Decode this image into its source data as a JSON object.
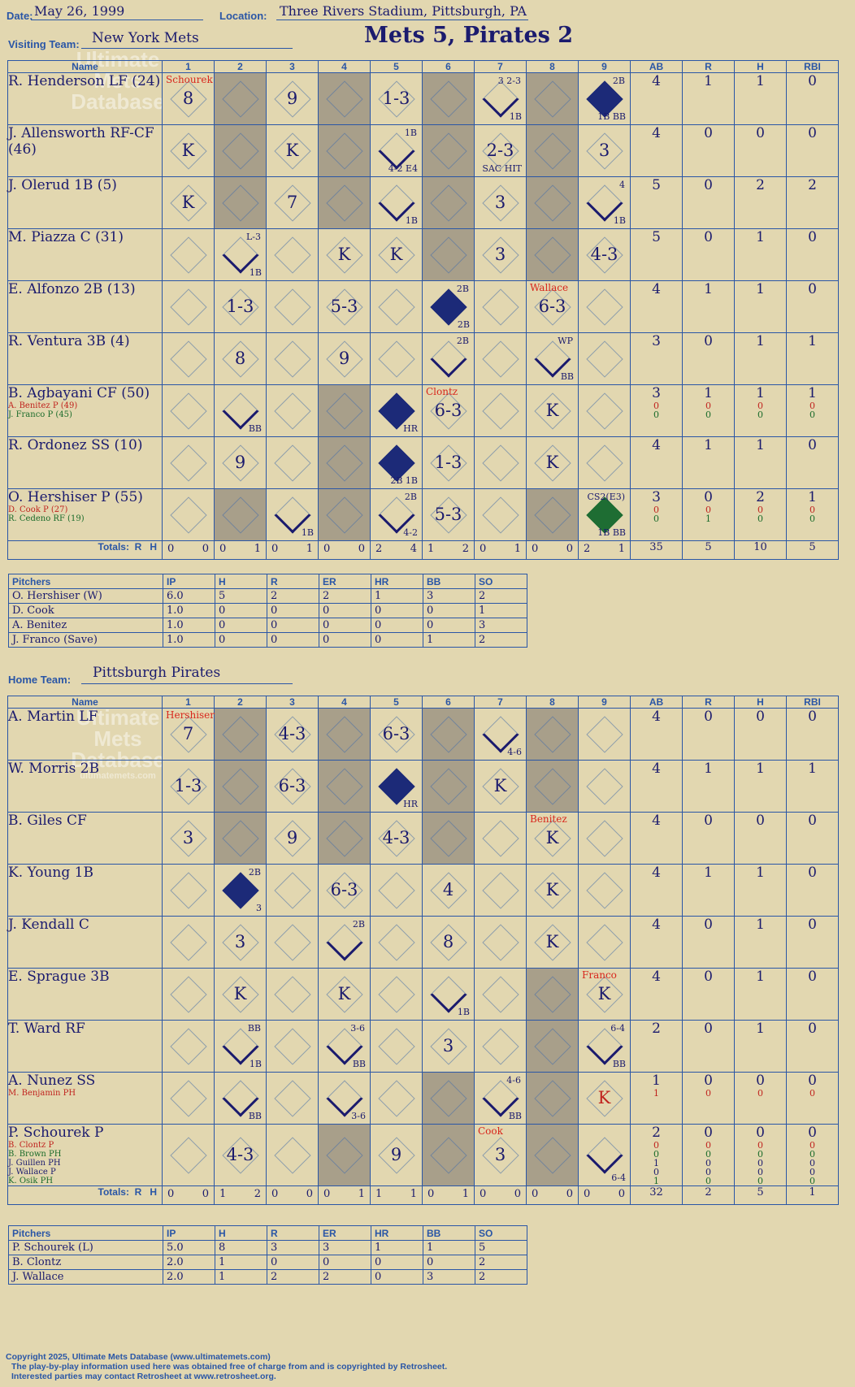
{
  "header": {
    "date_label": "Date:",
    "date": "May 26, 1999",
    "location_label": "Location:",
    "location": "Three Rivers Stadium, Pittsburgh, PA",
    "visiting_label": "Visiting Team:",
    "visiting_team": "New York Mets",
    "home_label": "Home Team:",
    "home_team": "Pittsburgh Pirates",
    "title": "Mets 5, Pirates 2"
  },
  "columns": {
    "name": "Name",
    "innings": [
      "1",
      "2",
      "3",
      "4",
      "5",
      "6",
      "7",
      "8",
      "9"
    ],
    "stats": [
      "AB",
      "R",
      "H",
      "RBI"
    ],
    "totals": "Totals:",
    "r": "R",
    "h": "H"
  },
  "watermark": {
    "line1": "Ultimate",
    "line2": "Mets",
    "line3": "Database",
    "url": "ultimatemets.com"
  },
  "visitors": {
    "shaded_innings": [
      2,
      4,
      6,
      8
    ],
    "players": [
      {
        "name": "R. Henderson LF (24)",
        "subs": [],
        "stats": {
          "ab": "4",
          "r": "1",
          "h": "1",
          "rbi": "0"
        },
        "cells": [
          {
            "inn": 1,
            "result": "8",
            "pitcher": "Schourek"
          },
          {
            "inn": 3,
            "result": "9"
          },
          {
            "inn": 5,
            "result": "1-3"
          },
          {
            "inn": 7,
            "note": "3  2-3",
            "note2": "1B",
            "half": true
          },
          {
            "inn": 9,
            "note": "2B",
            "note2": "1B BB",
            "full": true
          }
        ]
      },
      {
        "name": "J. Allensworth RF-CF (46)",
        "subs": [],
        "stats": {
          "ab": "4",
          "r": "0",
          "h": "0",
          "rbi": "0"
        },
        "cells": [
          {
            "inn": 1,
            "result": "K"
          },
          {
            "inn": 3,
            "result": "K"
          },
          {
            "inn": 5,
            "note": "1B",
            "note2": "4-2 E4",
            "half": true
          },
          {
            "inn": 7,
            "result": "2-3",
            "note2": "SAC HIT"
          },
          {
            "inn": 9,
            "result": "3"
          }
        ]
      },
      {
        "name": "J. Olerud 1B (5)",
        "subs": [],
        "stats": {
          "ab": "5",
          "r": "0",
          "h": "2",
          "rbi": "2"
        },
        "cells": [
          {
            "inn": 1,
            "result": "K"
          },
          {
            "inn": 3,
            "result": "7"
          },
          {
            "inn": 5,
            "note2": "1B",
            "half": true
          },
          {
            "inn": 7,
            "result": "3"
          },
          {
            "inn": 9,
            "note": "4",
            "note2": "1B",
            "half": true
          }
        ]
      },
      {
        "name": "M. Piazza C (31)",
        "subs": [],
        "stats": {
          "ab": "5",
          "r": "0",
          "h": "1",
          "rbi": "0"
        },
        "cells": [
          {
            "inn": 2,
            "note": "L-3",
            "note2": "1B",
            "half": true
          },
          {
            "inn": 4,
            "result": "K"
          },
          {
            "inn": 5,
            "result": "K"
          },
          {
            "inn": 7,
            "result": "3"
          },
          {
            "inn": 9,
            "result": "4-3"
          }
        ]
      },
      {
        "name": "E. Alfonzo 2B (13)",
        "subs": [],
        "stats": {
          "ab": "4",
          "r": "1",
          "h": "1",
          "rbi": "0"
        },
        "cells": [
          {
            "inn": 2,
            "result": "1-3"
          },
          {
            "inn": 4,
            "result": "5-3"
          },
          {
            "inn": 6,
            "note": "2B",
            "note2": "2B",
            "full": true
          },
          {
            "inn": 8,
            "result": "6-3",
            "pitcher": "Wallace"
          }
        ]
      },
      {
        "name": "R. Ventura 3B (4)",
        "subs": [],
        "stats": {
          "ab": "3",
          "r": "0",
          "h": "1",
          "rbi": "1"
        },
        "cells": [
          {
            "inn": 2,
            "result": "8"
          },
          {
            "inn": 4,
            "result": "9"
          },
          {
            "inn": 6,
            "note": "2B",
            "half": true
          },
          {
            "inn": 8,
            "note": "WP",
            "note2": "BB",
            "half": true
          }
        ]
      },
      {
        "name": "B. Agbayani CF (50)",
        "subs": [
          {
            "name": "A. Benitez P (49)",
            "cls": "red"
          },
          {
            "name": "J. Franco P (45)",
            "cls": "grn"
          }
        ],
        "stats": {
          "ab": "3",
          "r": "1",
          "h": "1",
          "rbi": "1"
        },
        "sub_stats": [
          [
            "0",
            "0",
            "0",
            "0"
          ],
          [
            "0",
            "0",
            "0",
            "0"
          ]
        ],
        "cells": [
          {
            "inn": 2,
            "note2": "BB",
            "half": true
          },
          {
            "inn": 5,
            "note2": "HR",
            "full": true
          },
          {
            "inn": 6,
            "result": "6-3",
            "pitcher": "Clontz"
          },
          {
            "inn": 8,
            "result": "K"
          }
        ]
      },
      {
        "name": "R. Ordonez SS (10)",
        "subs": [],
        "stats": {
          "ab": "4",
          "r": "1",
          "h": "1",
          "rbi": "0"
        },
        "cells": [
          {
            "inn": 2,
            "result": "9"
          },
          {
            "inn": 5,
            "note2": "2B 1B",
            "full": true
          },
          {
            "inn": 6,
            "result": "1-3"
          },
          {
            "inn": 8,
            "result": "K"
          }
        ]
      },
      {
        "name": "O. Hershiser P (55)",
        "subs": [
          {
            "name": "D. Cook P (27)",
            "cls": "red"
          },
          {
            "name": "R. Cedeno RF (19)",
            "cls": "grn"
          }
        ],
        "stats": {
          "ab": "3",
          "r": "0",
          "h": "2",
          "rbi": "1"
        },
        "sub_stats": [
          [
            "0",
            "0",
            "0",
            "0"
          ],
          [
            "0",
            "1",
            "0",
            "0"
          ]
        ],
        "cells": [
          {
            "inn": 3,
            "note2": "1B",
            "half": true
          },
          {
            "inn": 5,
            "note": "2B",
            "note2": "4-2",
            "half": true
          },
          {
            "inn": 6,
            "result": "5-3"
          },
          {
            "inn": 9,
            "note": "CS2(E3)",
            "note2": "1B BB",
            "fullg": true
          }
        ]
      }
    ],
    "totals": [
      [
        "0",
        "0"
      ],
      [
        "0",
        "1"
      ],
      [
        "0",
        "1"
      ],
      [
        "0",
        "0"
      ],
      [
        "2",
        "4"
      ],
      [
        "1",
        "2"
      ],
      [
        "0",
        "1"
      ],
      [
        "0",
        "0"
      ],
      [
        "2",
        "1"
      ]
    ],
    "stat_totals": {
      "ab": "35",
      "r": "5",
      "h": "10",
      "rbi": "5"
    },
    "pitchers": {
      "headers": [
        "Pitchers",
        "IP",
        "H",
        "R",
        "ER",
        "HR",
        "BB",
        "SO"
      ],
      "rows": [
        [
          "O. Hershiser (W)",
          "6.0",
          "5",
          "2",
          "2",
          "1",
          "3",
          "2"
        ],
        [
          "D. Cook",
          "1.0",
          "0",
          "0",
          "0",
          "0",
          "0",
          "1"
        ],
        [
          "A. Benitez",
          "1.0",
          "0",
          "0",
          "0",
          "0",
          "0",
          "3"
        ],
        [
          "J. Franco (Save)",
          "1.0",
          "0",
          "0",
          "0",
          "0",
          "1",
          "2"
        ]
      ]
    }
  },
  "home": {
    "shaded_innings": [
      2,
      4,
      6,
      8
    ],
    "players": [
      {
        "name": "A. Martin LF",
        "subs": [],
        "stats": {
          "ab": "4",
          "r": "0",
          "h": "0",
          "rbi": "0"
        },
        "cells": [
          {
            "inn": 1,
            "result": "7",
            "pitcher": "Hershiser"
          },
          {
            "inn": 3,
            "result": "4-3"
          },
          {
            "inn": 5,
            "result": "6-3"
          },
          {
            "inn": 7,
            "note2": "4-6",
            "half": true
          }
        ]
      },
      {
        "name": "W. Morris 2B",
        "subs": [],
        "stats": {
          "ab": "4",
          "r": "1",
          "h": "1",
          "rbi": "1"
        },
        "cells": [
          {
            "inn": 1,
            "result": "1-3"
          },
          {
            "inn": 3,
            "result": "6-3"
          },
          {
            "inn": 5,
            "note2": "HR",
            "full": true
          },
          {
            "inn": 7,
            "result": "K"
          }
        ]
      },
      {
        "name": "B. Giles CF",
        "subs": [],
        "stats": {
          "ab": "4",
          "r": "0",
          "h": "0",
          "rbi": "0"
        },
        "cells": [
          {
            "inn": 1,
            "result": "3"
          },
          {
            "inn": 3,
            "result": "9"
          },
          {
            "inn": 5,
            "result": "4-3"
          },
          {
            "inn": 8,
            "result": "K",
            "pitcher": "Benitez"
          }
        ]
      },
      {
        "name": "K. Young 1B",
        "subs": [],
        "stats": {
          "ab": "4",
          "r": "1",
          "h": "1",
          "rbi": "0"
        },
        "cells": [
          {
            "inn": 2,
            "note": "2B",
            "note2": "3",
            "full": true
          },
          {
            "inn": 4,
            "result": "6-3"
          },
          {
            "inn": 6,
            "result": "4"
          },
          {
            "inn": 8,
            "result": "K"
          }
        ]
      },
      {
        "name": "J. Kendall C",
        "subs": [],
        "stats": {
          "ab": "4",
          "r": "0",
          "h": "1",
          "rbi": "0"
        },
        "cells": [
          {
            "inn": 2,
            "result": "3"
          },
          {
            "inn": 4,
            "note": "2B",
            "half": true
          },
          {
            "inn": 6,
            "result": "8"
          },
          {
            "inn": 8,
            "result": "K"
          }
        ]
      },
      {
        "name": "E. Sprague 3B",
        "subs": [],
        "stats": {
          "ab": "4",
          "r": "0",
          "h": "1",
          "rbi": "0"
        },
        "cells": [
          {
            "inn": 2,
            "result": "K"
          },
          {
            "inn": 4,
            "result": "K"
          },
          {
            "inn": 6,
            "note2": "1B",
            "half": true
          },
          {
            "inn": 9,
            "result": "K",
            "pitcher": "Franco"
          }
        ]
      },
      {
        "name": "T. Ward RF",
        "subs": [],
        "stats": {
          "ab": "2",
          "r": "0",
          "h": "1",
          "rbi": "0"
        },
        "cells": [
          {
            "inn": 2,
            "note": "BB",
            "note2": "1B",
            "half": true
          },
          {
            "inn": 4,
            "note": "3-6",
            "note2": "BB",
            "half": true
          },
          {
            "inn": 6,
            "result": "3"
          },
          {
            "inn": 9,
            "note": "6-4",
            "note2": "BB",
            "half": true
          }
        ]
      },
      {
        "name": "A. Nunez SS",
        "subs": [
          {
            "name": "M. Benjamin PH",
            "cls": "red"
          }
        ],
        "stats": {
          "ab": "1",
          "r": "0",
          "h": "0",
          "rbi": "0"
        },
        "sub_stats": [
          [
            "1",
            "0",
            "0",
            "0"
          ]
        ],
        "cells": [
          {
            "inn": 2,
            "note2": "BB",
            "half": true
          },
          {
            "inn": 4,
            "note2": "3-6",
            "half": true
          },
          {
            "inn": 7,
            "note": "4-6",
            "note2": "BB",
            "half": true
          },
          {
            "inn": 9,
            "result": "K",
            "cls": "red"
          }
        ]
      },
      {
        "name": "P. Schourek P",
        "subs": [
          {
            "name": "B. Clontz P",
            "cls": "red"
          },
          {
            "name": "B. Brown PH",
            "cls": "grn"
          },
          {
            "name": "J. Guillen PH",
            "cls": ""
          },
          {
            "name": "J. Wallace P",
            "cls": ""
          },
          {
            "name": "K. Osik PH",
            "cls": "grn"
          }
        ],
        "stats": {
          "ab": "2",
          "r": "0",
          "h": "0",
          "rbi": "0"
        },
        "sub_stats": [
          [
            "0",
            "0",
            "0",
            "0"
          ],
          [
            "0",
            "0",
            "0",
            "0"
          ],
          [
            "1",
            "0",
            "0",
            "0"
          ],
          [
            "0",
            "0",
            "0",
            "0"
          ],
          [
            "1",
            "0",
            "0",
            "0"
          ]
        ],
        "cells": [
          {
            "inn": 2,
            "result": "4-3"
          },
          {
            "inn": 5,
            "result": "9"
          },
          {
            "inn": 7,
            "result": "3",
            "pitcher": "Cook"
          },
          {
            "inn": 9,
            "note2": "6-4",
            "half": true
          }
        ]
      }
    ],
    "totals": [
      [
        "0",
        "0"
      ],
      [
        "1",
        "2"
      ],
      [
        "0",
        "0"
      ],
      [
        "0",
        "1"
      ],
      [
        "1",
        "1"
      ],
      [
        "0",
        "1"
      ],
      [
        "0",
        "0"
      ],
      [
        "0",
        "0"
      ],
      [
        "0",
        "0"
      ]
    ],
    "stat_totals": {
      "ab": "32",
      "r": "2",
      "h": "5",
      "rbi": "1"
    },
    "pitchers": {
      "headers": [
        "Pitchers",
        "IP",
        "H",
        "R",
        "ER",
        "HR",
        "BB",
        "SO"
      ],
      "rows": [
        [
          "P. Schourek (L)",
          "5.0",
          "8",
          "3",
          "3",
          "1",
          "1",
          "5"
        ],
        [
          "B. Clontz",
          "2.0",
          "1",
          "0",
          "0",
          "0",
          "0",
          "2"
        ],
        [
          "J. Wallace",
          "2.0",
          "1",
          "2",
          "2",
          "0",
          "3",
          "2"
        ]
      ]
    }
  },
  "footer": {
    "line1": "Copyright 2025, Ultimate Mets Database (www.ultimatemets.com)",
    "line2": "The play-by-play information used here was obtained free of charge from and is copyrighted by Retrosheet.",
    "line3": "Interested parties may contact Retrosheet at www.retrosheet.org."
  },
  "colors": {
    "background": "#e2d7b0",
    "grid": "#2a56a6",
    "ink": "#1b1b6e",
    "shade": "#a89f8a",
    "red": "#d8261c",
    "green": "#1a6b2a"
  }
}
